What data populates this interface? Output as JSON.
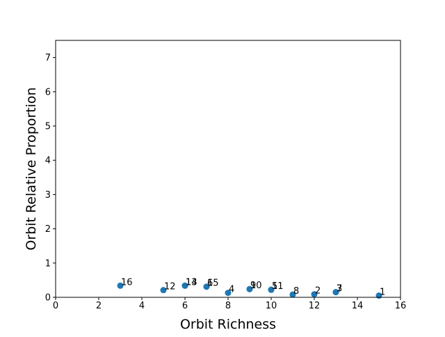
{
  "chart_data": {
    "type": "scatter",
    "title": "",
    "xlabel": "Orbit Richness",
    "ylabel": "Orbit Relative Proportion",
    "xlim": [
      0,
      16
    ],
    "ylim": [
      0,
      7.5
    ],
    "xticks": [
      0,
      2,
      4,
      6,
      8,
      10,
      12,
      14,
      16
    ],
    "yticks": [
      0,
      1,
      2,
      3,
      4,
      5,
      6,
      7
    ],
    "grid": false,
    "marker_color": "#1f77b4",
    "points": [
      {
        "label": "1",
        "x": 15,
        "y": 0.05
      },
      {
        "label": "2",
        "x": 12,
        "y": 0.09
      },
      {
        "label": "3",
        "x": 13,
        "y": 0.15
      },
      {
        "label": "4",
        "x": 8,
        "y": 0.13
      },
      {
        "label": "5",
        "x": 10,
        "y": 0.22
      },
      {
        "label": "6",
        "x": 7,
        "y": 0.31
      },
      {
        "label": "7",
        "x": 13,
        "y": 0.15
      },
      {
        "label": "8",
        "x": 11,
        "y": 0.08
      },
      {
        "label": "9",
        "x": 9,
        "y": 0.24
      },
      {
        "label": "10",
        "x": 9,
        "y": 0.24
      },
      {
        "label": "11",
        "x": 10,
        "y": 0.22
      },
      {
        "label": "12",
        "x": 5,
        "y": 0.21
      },
      {
        "label": "13",
        "x": 6,
        "y": 0.34
      },
      {
        "label": "14",
        "x": 6,
        "y": 0.34
      },
      {
        "label": "15",
        "x": 7,
        "y": 0.31
      },
      {
        "label": "16",
        "x": 3,
        "y": 0.34
      }
    ]
  }
}
